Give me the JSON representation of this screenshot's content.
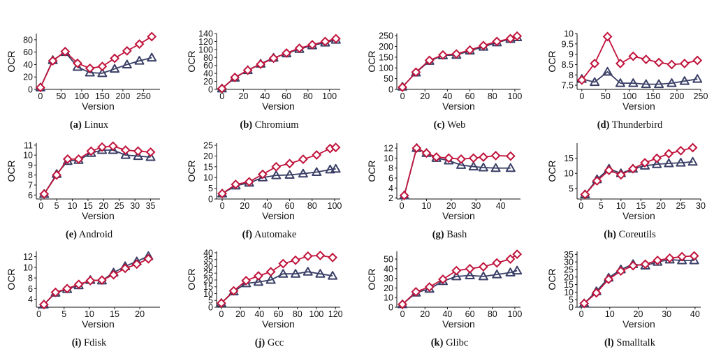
{
  "colors": {
    "red": "#c0143c",
    "blue": "#3a3f66"
  },
  "chart_data": [
    {
      "type": "line",
      "caption_label": "(a)",
      "caption_name": "Linux",
      "xlabel": "Version",
      "ylabel": "OCR",
      "xlim": [
        -10,
        290
      ],
      "ylim": [
        0,
        90
      ],
      "xticks": [
        0,
        50,
        100,
        150,
        200,
        250
      ],
      "yticks": [
        0,
        20,
        40,
        60,
        80
      ],
      "x": [
        0,
        30,
        60,
        90,
        120,
        150,
        180,
        210,
        240,
        270
      ],
      "series": [
        {
          "color": "red",
          "marker": "diamond",
          "values": [
            3,
            46,
            61,
            42,
            34,
            37,
            50,
            62,
            73,
            85
          ]
        },
        {
          "color": "blue",
          "marker": "triangle",
          "values": [
            3,
            47,
            60,
            36,
            27,
            26,
            33,
            40,
            46,
            51
          ]
        }
      ]
    },
    {
      "type": "line",
      "caption_label": "(b)",
      "caption_name": "Chromium",
      "xlabel": "Version",
      "ylabel": "OCR",
      "xlim": [
        -5,
        110
      ],
      "ylim": [
        0,
        140
      ],
      "xticks": [
        0,
        20,
        40,
        60,
        80,
        100
      ],
      "yticks": [
        0,
        20,
        40,
        60,
        80,
        100,
        120,
        140
      ],
      "x": [
        0,
        12,
        24,
        36,
        48,
        60,
        72,
        84,
        96,
        106
      ],
      "series": [
        {
          "color": "red",
          "marker": "diamond",
          "values": [
            2,
            30,
            48,
            63,
            78,
            91,
            103,
            112,
            120,
            127
          ]
        },
        {
          "color": "blue",
          "marker": "triangle",
          "values": [
            2,
            29,
            48,
            64,
            79,
            90,
            101,
            110,
            117,
            124
          ]
        }
      ]
    },
    {
      "type": "line",
      "caption_label": "(c)",
      "caption_name": "Web",
      "xlabel": "Version",
      "ylabel": "OCR",
      "xlim": [
        -5,
        105
      ],
      "ylim": [
        0,
        260
      ],
      "xticks": [
        0,
        20,
        40,
        60,
        80,
        100
      ],
      "yticks": [
        0,
        50,
        100,
        150,
        200,
        250
      ],
      "x": [
        0,
        12,
        24,
        36,
        48,
        60,
        72,
        84,
        96,
        102
      ],
      "series": [
        {
          "color": "red",
          "marker": "diamond",
          "values": [
            10,
            80,
            135,
            160,
            165,
            183,
            204,
            223,
            236,
            248
          ]
        },
        {
          "color": "blue",
          "marker": "triangle",
          "values": [
            12,
            78,
            132,
            158,
            160,
            180,
            198,
            218,
            234,
            242
          ]
        }
      ]
    },
    {
      "type": "line",
      "caption_label": "(d)",
      "caption_name": "Thunderbird",
      "xlabel": "Version",
      "ylabel": "OCR",
      "xlim": [
        -10,
        250
      ],
      "ylim": [
        7.3,
        10
      ],
      "xticks": [
        0,
        50,
        100,
        150,
        200,
        250
      ],
      "yticks": [
        7.5,
        8,
        8.5,
        9,
        9.5,
        10
      ],
      "x": [
        0,
        27,
        54,
        81,
        108,
        135,
        162,
        189,
        216,
        243
      ],
      "series": [
        {
          "color": "red",
          "marker": "diamond",
          "values": [
            7.75,
            8.55,
            9.85,
            8.55,
            8.9,
            8.75,
            8.6,
            8.5,
            8.55,
            8.7
          ]
        },
        {
          "color": "blue",
          "marker": "triangle",
          "values": [
            7.8,
            7.65,
            8.15,
            7.6,
            7.6,
            7.55,
            7.55,
            7.6,
            7.7,
            7.8
          ]
        }
      ]
    },
    {
      "type": "line",
      "caption_label": "(e)",
      "caption_name": "Android",
      "xlabel": "Version",
      "ylabel": "OCR",
      "xlim": [
        -1.5,
        38
      ],
      "ylim": [
        5.6,
        11.2
      ],
      "xticks": [
        0,
        5,
        10,
        15,
        20,
        25,
        30,
        35
      ],
      "yticks": [
        6,
        7,
        8,
        9,
        10,
        11
      ],
      "x": [
        1,
        5,
        8.5,
        12,
        16,
        19.5,
        23,
        27,
        31,
        35
      ],
      "series": [
        {
          "color": "red",
          "marker": "diamond",
          "values": [
            6.1,
            8.0,
            9.6,
            9.6,
            10.4,
            10.8,
            10.9,
            10.5,
            10.4,
            10.3
          ]
        },
        {
          "color": "blue",
          "marker": "triangle",
          "values": [
            6.1,
            8.1,
            9.4,
            9.5,
            10.2,
            10.5,
            10.5,
            10.0,
            9.9,
            9.8
          ]
        }
      ]
    },
    {
      "type": "line",
      "caption_label": "(f)",
      "caption_name": "Automake",
      "xlabel": "Version",
      "ylabel": "OCR",
      "xlim": [
        -5,
        105
      ],
      "ylim": [
        0,
        26
      ],
      "xticks": [
        0,
        20,
        40,
        60,
        80,
        100
      ],
      "yticks": [
        0,
        5,
        10,
        15,
        20,
        25
      ],
      "x": [
        0,
        12,
        24,
        36,
        48,
        60,
        72,
        84,
        96,
        101
      ],
      "series": [
        {
          "color": "red",
          "marker": "diamond",
          "values": [
            2.5,
            6.8,
            8.0,
            11.5,
            15.0,
            16.5,
            18.5,
            20.5,
            23.5,
            24.0
          ]
        },
        {
          "color": "blue",
          "marker": "triangle",
          "values": [
            2.5,
            6.2,
            7.5,
            10.0,
            11.0,
            11.2,
            11.8,
            12.5,
            13.7,
            14.0
          ]
        }
      ]
    },
    {
      "type": "line",
      "caption_label": "(g)",
      "caption_name": "Bash",
      "xlabel": "Version",
      "ylabel": "OCR",
      "xlim": [
        -2,
        48
      ],
      "ylim": [
        1.8,
        13
      ],
      "xticks": [
        0,
        10,
        20,
        30,
        40
      ],
      "yticks": [
        2,
        4,
        6,
        8,
        10,
        12
      ],
      "x": [
        1,
        6,
        10,
        14,
        19,
        24,
        29,
        33,
        38,
        44
      ],
      "series": [
        {
          "color": "red",
          "marker": "diamond",
          "values": [
            2.5,
            12.0,
            11.0,
            10.2,
            10.0,
            9.8,
            10.0,
            10.2,
            10.5,
            10.4
          ]
        },
        {
          "color": "blue",
          "marker": "triangle",
          "values": [
            2.5,
            12.0,
            11.0,
            10.0,
            9.5,
            8.6,
            8.3,
            8.1,
            8.0,
            8.0
          ]
        }
      ]
    },
    {
      "type": "line",
      "caption_label": "(h)",
      "caption_name": "Coreutils",
      "xlabel": "Version",
      "ylabel": "OCR",
      "xlim": [
        -1,
        30
      ],
      "ylim": [
        1.5,
        20
      ],
      "xticks": [
        0,
        5,
        10,
        15,
        20,
        25,
        30
      ],
      "yticks": [
        5,
        10,
        15
      ],
      "x": [
        1,
        4,
        7,
        10,
        13,
        16,
        19,
        22,
        25,
        28
      ],
      "series": [
        {
          "color": "red",
          "marker": "diamond",
          "values": [
            3.0,
            7.5,
            11.0,
            9.5,
            11.5,
            13.5,
            15.0,
            16.5,
            17.5,
            18.5
          ]
        },
        {
          "color": "blue",
          "marker": "triangle",
          "values": [
            3.0,
            8.0,
            11.5,
            10.0,
            11.5,
            12.5,
            13.0,
            13.3,
            13.5,
            13.8
          ]
        }
      ]
    },
    {
      "type": "line",
      "caption_label": "(i)",
      "caption_name": "Fdisk",
      "xlabel": "Version",
      "ylabel": "OCR",
      "xlim": [
        -0.5,
        24
      ],
      "ylim": [
        2.5,
        13
      ],
      "xticks": [
        0,
        5,
        10,
        15,
        20
      ],
      "yticks": [
        4,
        6,
        8,
        10,
        12
      ],
      "x": [
        1,
        3.3,
        5.6,
        7.9,
        10.2,
        12.5,
        14.8,
        17.1,
        19.4,
        21.7
      ],
      "series": [
        {
          "color": "red",
          "marker": "diamond",
          "values": [
            3.0,
            5.3,
            6.0,
            6.8,
            7.5,
            7.6,
            8.6,
            9.8,
            10.6,
            11.6
          ]
        },
        {
          "color": "blue",
          "marker": "triangle",
          "values": [
            3.0,
            5.2,
            5.9,
            6.6,
            7.6,
            7.5,
            9.0,
            10.2,
            11.1,
            12.1
          ]
        }
      ]
    },
    {
      "type": "line",
      "caption_label": "(j)",
      "caption_name": "Gcc",
      "xlabel": "Version",
      "ylabel": "OCR",
      "xlim": [
        -5,
        125
      ],
      "ylim": [
        0,
        41
      ],
      "xticks": [
        0,
        20,
        40,
        60,
        80,
        100,
        120
      ],
      "yticks": [
        0,
        5,
        10,
        15,
        20,
        25,
        30,
        35,
        40
      ],
      "x": [
        0,
        13,
        26,
        39,
        52,
        65,
        78,
        91,
        104,
        117
      ],
      "series": [
        {
          "color": "red",
          "marker": "diamond",
          "values": [
            3.0,
            12.0,
            19.5,
            23.0,
            26.0,
            32.0,
            34.5,
            37.5,
            38.0,
            36.5
          ]
        },
        {
          "color": "blue",
          "marker": "triangle",
          "values": [
            3.0,
            11.5,
            17.5,
            18.5,
            20.0,
            24.5,
            24.5,
            26.0,
            24.5,
            23.0
          ]
        }
      ]
    },
    {
      "type": "line",
      "caption_label": "(k)",
      "caption_name": "Glibc",
      "xlabel": "Version",
      "ylabel": "OCR",
      "xlim": [
        -5,
        105
      ],
      "ylim": [
        0,
        58
      ],
      "xticks": [
        0,
        20,
        40,
        60,
        80,
        100
      ],
      "yticks": [
        0,
        10,
        20,
        30,
        40,
        50
      ],
      "x": [
        0,
        12,
        24,
        36,
        48,
        60,
        72,
        84,
        96,
        102
      ],
      "series": [
        {
          "color": "red",
          "marker": "diamond",
          "values": [
            3.0,
            16.0,
            21.0,
            29.0,
            38.0,
            40.0,
            42.0,
            46.0,
            50.0,
            55.0
          ]
        },
        {
          "color": "blue",
          "marker": "triangle",
          "values": [
            3.0,
            15.0,
            19.0,
            27.0,
            32.0,
            33.0,
            32.0,
            34.0,
            36.0,
            38.0
          ]
        }
      ]
    },
    {
      "type": "line",
      "caption_label": "(l)",
      "caption_name": "Smalltalk",
      "xlabel": "Version",
      "ylabel": "OCR",
      "xlim": [
        -1.5,
        42
      ],
      "ylim": [
        0,
        37
      ],
      "xticks": [
        0,
        10,
        20,
        30,
        40
      ],
      "yticks": [
        0,
        5,
        10,
        15,
        20,
        25,
        30,
        35
      ],
      "x": [
        1,
        5.3,
        9.6,
        13.9,
        18.2,
        22.5,
        26.8,
        31.1,
        35.4,
        39.7
      ],
      "series": [
        {
          "color": "red",
          "marker": "diamond",
          "values": [
            2.5,
            9.5,
            18.5,
            24.0,
            27.5,
            28.5,
            31.0,
            32.5,
            33.5,
            34.0
          ]
        },
        {
          "color": "blue",
          "marker": "triangle",
          "values": [
            2.5,
            10.5,
            19.5,
            25.0,
            28.5,
            27.5,
            30.0,
            31.5,
            31.0,
            31.0
          ]
        }
      ]
    }
  ]
}
